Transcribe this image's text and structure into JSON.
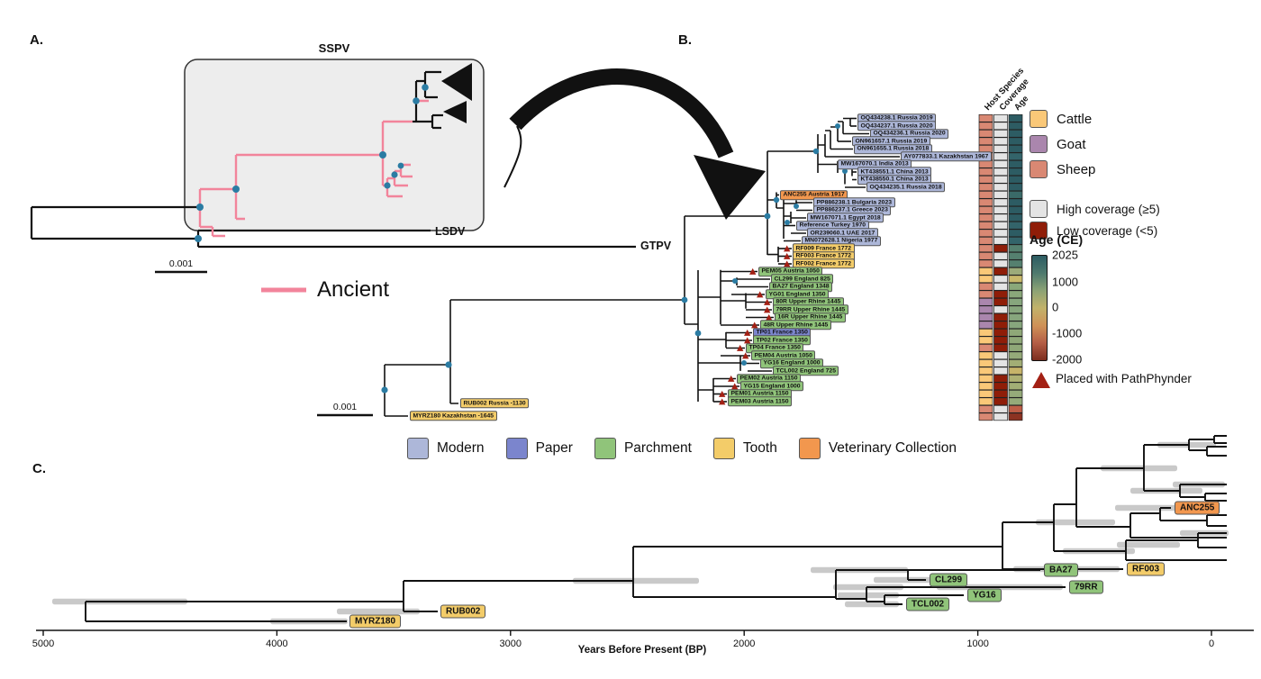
{
  "panels": {
    "a": "A.",
    "b": "B.",
    "c": "C."
  },
  "panelA": {
    "box_label": "SSPV",
    "lsdv_label": "LSDV",
    "gtpv_label": "GTPV",
    "scale_label": "0.001",
    "ancient_label": "Ancient",
    "ancient_color": "#f2849b",
    "node_color": "#2b7ca3"
  },
  "panelB": {
    "scale_label": "0.001",
    "heatmap_headers": [
      "Host Species",
      "Coverage",
      "Age"
    ],
    "tips": [
      {
        "label": "OQ434238.1 Russia 2019",
        "cat": "modern",
        "tri": false,
        "host": "sheep",
        "cov": "high",
        "age": "#2d5c63"
      },
      {
        "label": "OQ434237.1 Russia 2020",
        "cat": "modern",
        "tri": false,
        "host": "sheep",
        "cov": "high",
        "age": "#2d5c63"
      },
      {
        "label": "OQ434236.1 Russia 2020",
        "cat": "modern",
        "tri": false,
        "host": "sheep",
        "cov": "high",
        "age": "#2d5c63"
      },
      {
        "label": "ON961657.1 Russia 2019",
        "cat": "modern",
        "tri": false,
        "host": "sheep",
        "cov": "high",
        "age": "#2d5c63"
      },
      {
        "label": "ON961655.1 Russia 2018",
        "cat": "modern",
        "tri": false,
        "host": "sheep",
        "cov": "high",
        "age": "#2d5c63"
      },
      {
        "label": "AY077833.1 Kazakhstan 1967",
        "cat": "modern",
        "tri": false,
        "host": "sheep",
        "cov": "high",
        "age": "#33646a"
      },
      {
        "label": "MW167070.1 India 2013",
        "cat": "modern",
        "tri": false,
        "host": "sheep",
        "cov": "high",
        "age": "#2d5c63"
      },
      {
        "label": "KT438551.1 China 2013",
        "cat": "modern",
        "tri": false,
        "host": "sheep",
        "cov": "high",
        "age": "#2d5c63"
      },
      {
        "label": "KT438550.1 China 2013",
        "cat": "modern",
        "tri": false,
        "host": "sheep",
        "cov": "high",
        "age": "#2d5c63"
      },
      {
        "label": "OQ434235.1 Russia 2018",
        "cat": "modern",
        "tri": false,
        "host": "sheep",
        "cov": "high",
        "age": "#2d5c63"
      },
      {
        "label": "ANC255 Austria 1917",
        "cat": "vet",
        "tri": false,
        "host": "sheep",
        "cov": "high",
        "age": "#3a6a68"
      },
      {
        "label": "PP886238.1 Bulgaria 2023",
        "cat": "modern",
        "tri": false,
        "host": "sheep",
        "cov": "high",
        "age": "#2d5c63"
      },
      {
        "label": "PP886237.1 Greece 2023",
        "cat": "modern",
        "tri": false,
        "host": "sheep",
        "cov": "high",
        "age": "#2d5c63"
      },
      {
        "label": "MW167071.1 Egypt 2018",
        "cat": "modern",
        "tri": false,
        "host": "sheep",
        "cov": "high",
        "age": "#2d5c63"
      },
      {
        "label": "Reference Turkey 1970",
        "cat": "modern",
        "tri": false,
        "host": "sheep",
        "cov": "high",
        "age": "#33646a"
      },
      {
        "label": "OR239060.1 UAE 2017",
        "cat": "modern",
        "tri": false,
        "host": "sheep",
        "cov": "high",
        "age": "#2d5c63"
      },
      {
        "label": "MN072628.1 Nigeria 1977",
        "cat": "modern",
        "tri": false,
        "host": "sheep",
        "cov": "high",
        "age": "#33646a"
      },
      {
        "label": "RF009 France 1772",
        "cat": "tooth",
        "tri": true,
        "host": "sheep",
        "cov": "low",
        "age": "#55806f"
      },
      {
        "label": "RF003 France 1772",
        "cat": "tooth",
        "tri": true,
        "host": "sheep",
        "cov": "high",
        "age": "#55806f"
      },
      {
        "label": "RF002 France 1772",
        "cat": "tooth",
        "tri": true,
        "host": "sheep",
        "cov": "high",
        "age": "#55806f"
      },
      {
        "label": "PEM05 Austria 1050",
        "cat": "parchment",
        "tri": true,
        "host": "cattle",
        "cov": "low",
        "age": "#9cab7a"
      },
      {
        "label": "CL299 England 825",
        "cat": "parchment",
        "tri": false,
        "host": "cattle",
        "cov": "high",
        "age": "#c9b96b"
      },
      {
        "label": "BA27 England 1348",
        "cat": "parchment",
        "tri": false,
        "host": "sheep",
        "cov": "high",
        "age": "#8aa87a"
      },
      {
        "label": "YG01 England 1350",
        "cat": "parchment",
        "tri": true,
        "host": "sheep",
        "cov": "low",
        "age": "#8aa87a"
      },
      {
        "label": "80R Upper Rhine 1445",
        "cat": "parchment",
        "tri": true,
        "host": "goat",
        "cov": "low",
        "age": "#87a67d"
      },
      {
        "label": "79RR Upper Rhine 1445",
        "cat": "parchment",
        "tri": true,
        "host": "goat",
        "cov": "high",
        "age": "#87a67d"
      },
      {
        "label": "16R Upper Rhine 1445",
        "cat": "parchment",
        "tri": true,
        "host": "goat",
        "cov": "low",
        "age": "#87a67d"
      },
      {
        "label": "48R Upper Rhine 1445",
        "cat": "parchment",
        "tri": true,
        "host": "goat",
        "cov": "low",
        "age": "#87a67d"
      },
      {
        "label": "TP01 France 1350",
        "cat": "paper",
        "tri": true,
        "host": "cattle",
        "cov": "low",
        "age": "#8fa878"
      },
      {
        "label": "TP02 France 1350",
        "cat": "parchment",
        "tri": true,
        "host": "cattle",
        "cov": "low",
        "age": "#8fa878"
      },
      {
        "label": "TP04 France 1350",
        "cat": "parchment",
        "tri": true,
        "host": "sheep",
        "cov": "low",
        "age": "#8fa878"
      },
      {
        "label": "PEM04 Austria 1050",
        "cat": "parchment",
        "tri": true,
        "host": "cattle",
        "cov": "high",
        "age": "#95aa79"
      },
      {
        "label": "YG16 England 1000",
        "cat": "parchment",
        "tri": false,
        "host": "cattle",
        "cov": "high",
        "age": "#a2ae75"
      },
      {
        "label": "TCL002 England 725",
        "cat": "parchment",
        "tri": false,
        "host": "cattle",
        "cov": "high",
        "age": "#c7b469"
      },
      {
        "label": "PEM02 Austria 1150",
        "cat": "parchment",
        "tri": true,
        "host": "cattle",
        "cov": "low",
        "age": "#aeb173"
      },
      {
        "label": "YG15 England 1000",
        "cat": "parchment",
        "tri": true,
        "host": "cattle",
        "cov": "low",
        "age": "#a2ae75"
      },
      {
        "label": "PEM01 Austria 1150",
        "cat": "parchment",
        "tri": true,
        "host": "cattle",
        "cov": "low",
        "age": "#95aa79"
      },
      {
        "label": "PEM03 Austria 1150",
        "cat": "parchment",
        "tri": true,
        "host": "cattle",
        "cov": "low",
        "age": "#95aa79"
      },
      {
        "label": "RUB002 Russia -1130",
        "cat": "tooth",
        "tri": false,
        "host": "sheep",
        "cov": "high",
        "age": "#bf5e47"
      },
      {
        "label": "MYRZ180 Kazakhstan -1645",
        "cat": "tooth",
        "tri": false,
        "host": "sheep",
        "cov": "high",
        "age": "#8c3322"
      }
    ]
  },
  "legend": {
    "host": [
      {
        "key": "cattle",
        "label": "Cattle",
        "color": "#fac878"
      },
      {
        "key": "goat",
        "label": "Goat",
        "color": "#aa86ad"
      },
      {
        "key": "sheep",
        "label": "Sheep",
        "color": "#d98873"
      }
    ],
    "coverage": [
      {
        "key": "high",
        "label": "High coverage (≥5)",
        "color": "#e4e4e4"
      },
      {
        "key": "low",
        "label": "Low coverage (<5)",
        "color": "#8f1d08"
      }
    ],
    "age": {
      "title": "Age (CE)",
      "ticks": [
        {
          "label": "2025",
          "value": 2025
        },
        {
          "label": "1000",
          "value": 1000
        },
        {
          "label": "0",
          "value": 0
        },
        {
          "label": "-1000",
          "value": -1000
        },
        {
          "label": "-2000",
          "value": -2000
        }
      ],
      "range": [
        2025,
        -2000
      ],
      "gradient": [
        "#2d5c63",
        "#4f7a6e",
        "#8ba275",
        "#c2b26a",
        "#cf9157",
        "#b55f47",
        "#7c2d1e"
      ]
    },
    "pathphynder": {
      "label": "Placed with PathPhynder",
      "color": "#a32014"
    },
    "material": [
      {
        "key": "modern",
        "label": "Modern",
        "color": "#adb7d9"
      },
      {
        "key": "paper",
        "label": "Paper",
        "color": "#7b85cd"
      },
      {
        "key": "parchment",
        "label": "Parchment",
        "color": "#90c47a"
      },
      {
        "key": "tooth",
        "label": "Tooth",
        "color": "#f3cc69"
      },
      {
        "key": "vet",
        "label": "Veterinary Collection",
        "color": "#f2974e"
      }
    ]
  },
  "panelC": {
    "axis": {
      "label": "Years Before Present (BP)",
      "ticks": [
        {
          "label": "5000",
          "value": 5000
        },
        {
          "label": "4000",
          "value": 4000
        },
        {
          "label": "3000",
          "value": 3000
        },
        {
          "label": "2000",
          "value": 2000
        },
        {
          "label": "1000",
          "value": 1000
        },
        {
          "label": "0",
          "value": 0
        }
      ]
    },
    "tips": [
      {
        "label": "MYRZ180",
        "cat": "tooth"
      },
      {
        "label": "RUB002",
        "cat": "tooth"
      },
      {
        "label": "TCL002",
        "cat": "parchment"
      },
      {
        "label": "YG16",
        "cat": "parchment"
      },
      {
        "label": "CL299",
        "cat": "parchment"
      },
      {
        "label": "BA27",
        "cat": "parchment"
      },
      {
        "label": "79RR",
        "cat": "parchment"
      },
      {
        "label": "RF003",
        "cat": "tooth"
      },
      {
        "label": "ANC255",
        "cat": "vet"
      }
    ]
  }
}
